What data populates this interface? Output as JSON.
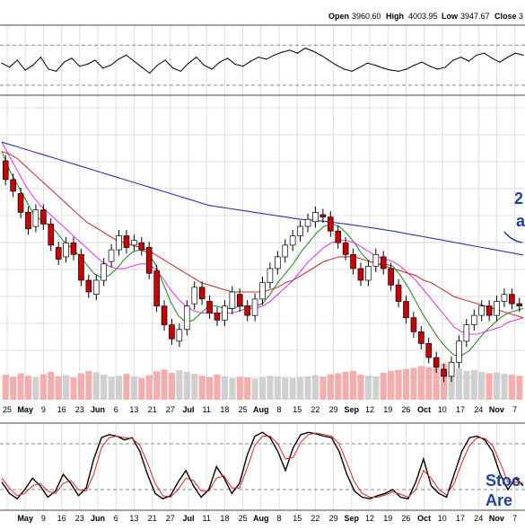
{
  "header": {
    "open_label": "Open",
    "open_value": "3960.60",
    "high_label": "High",
    "high_value": "4003.95",
    "low_label": "Low",
    "low_value": "3947.67",
    "close_label": "Close",
    "close_value": "3"
  },
  "annotations": {
    "ma_note_line1": "2",
    "ma_note_line2": "a",
    "bottom_note_line1": "Stoc",
    "bottom_note_line2": "Are "
  },
  "colors": {
    "up_candle": "#ffffff",
    "down_candle": "#cc0000",
    "ma_fast": "#2e8b2e",
    "ma_mid": "#e040e0",
    "ma_slow_red": "#cc3333",
    "ma_long_blue": "#2a35b0",
    "stoch_k": "#000000",
    "stoch_d": "#dd2222",
    "grid": "#dddddd",
    "annotation": "#1f3fa8"
  },
  "chart_data": [
    {
      "panel": "rsi-indicator",
      "type": "line",
      "values": [
        52,
        48,
        55,
        45,
        50,
        58,
        46,
        44,
        53,
        57,
        49,
        51,
        55,
        47,
        50,
        56,
        60,
        54,
        48,
        42,
        50,
        55,
        47,
        44,
        52,
        58,
        50,
        46,
        53,
        57,
        51,
        49,
        54,
        58,
        56,
        60,
        63,
        65,
        62,
        67,
        64,
        60,
        55,
        50,
        46,
        44,
        48,
        52,
        50,
        47,
        45,
        44,
        46,
        50,
        53,
        49,
        46,
        48,
        55,
        58,
        54,
        60,
        62,
        57,
        53,
        58,
        62,
        60
      ],
      "ylim": [
        20,
        90
      ],
      "reference_levels": [
        70,
        30
      ]
    },
    {
      "panel": "price",
      "type": "candlestick",
      "x_tick_labels": [
        "25",
        "May",
        "9",
        "16",
        "23",
        "Jun",
        "6",
        "13",
        "21",
        "27",
        "Jul",
        "11",
        "18",
        "25",
        "Aug",
        "8",
        "15",
        "22",
        "29",
        "Sep",
        "12",
        "19",
        "26",
        "Oct",
        "10",
        "17",
        "24",
        "Nov",
        "7"
      ],
      "ylim": [
        3500,
        4800
      ],
      "candles": [
        {
          "o": 4520,
          "c": 4440
        },
        {
          "o": 4440,
          "c": 4390
        },
        {
          "o": 4380,
          "c": 4300
        },
        {
          "o": 4300,
          "c": 4230
        },
        {
          "o": 4240,
          "c": 4310
        },
        {
          "o": 4310,
          "c": 4250
        },
        {
          "o": 4250,
          "c": 4160
        },
        {
          "o": 4150,
          "c": 4100
        },
        {
          "o": 4110,
          "c": 4170
        },
        {
          "o": 4170,
          "c": 4120
        },
        {
          "o": 4120,
          "c": 4010
        },
        {
          "o": 4010,
          "c": 3960
        },
        {
          "o": 3950,
          "c": 4010
        },
        {
          "o": 4010,
          "c": 4080
        },
        {
          "o": 4090,
          "c": 4140
        },
        {
          "o": 4140,
          "c": 4200
        },
        {
          "o": 4200,
          "c": 4150
        },
        {
          "o": 4160,
          "c": 4180
        },
        {
          "o": 4170,
          "c": 4140
        },
        {
          "o": 4150,
          "c": 4040
        },
        {
          "o": 4050,
          "c": 3900
        },
        {
          "o": 3900,
          "c": 3820
        },
        {
          "o": 3820,
          "c": 3760
        },
        {
          "o": 3750,
          "c": 3800
        },
        {
          "o": 3800,
          "c": 3900
        },
        {
          "o": 3910,
          "c": 3980
        },
        {
          "o": 3980,
          "c": 3930
        },
        {
          "o": 3920,
          "c": 3870
        },
        {
          "o": 3870,
          "c": 3840
        },
        {
          "o": 3840,
          "c": 3900
        },
        {
          "o": 3890,
          "c": 3960
        },
        {
          "o": 3950,
          "c": 3900
        },
        {
          "o": 3900,
          "c": 3860
        },
        {
          "o": 3860,
          "c": 3930
        },
        {
          "o": 3930,
          "c": 4000
        },
        {
          "o": 4000,
          "c": 4060
        },
        {
          "o": 4060,
          "c": 4110
        },
        {
          "o": 4110,
          "c": 4160
        },
        {
          "o": 4160,
          "c": 4200
        },
        {
          "o": 4200,
          "c": 4240
        },
        {
          "o": 4240,
          "c": 4270
        },
        {
          "o": 4260,
          "c": 4300
        },
        {
          "o": 4290,
          "c": 4280
        },
        {
          "o": 4280,
          "c": 4220
        },
        {
          "o": 4220,
          "c": 4170
        },
        {
          "o": 4170,
          "c": 4120
        },
        {
          "o": 4120,
          "c": 4060
        },
        {
          "o": 4060,
          "c": 4010
        },
        {
          "o": 4010,
          "c": 4070
        },
        {
          "o": 4070,
          "c": 4120
        },
        {
          "o": 4110,
          "c": 4060
        },
        {
          "o": 4060,
          "c": 3990
        },
        {
          "o": 3990,
          "c": 3920
        },
        {
          "o": 3920,
          "c": 3850
        },
        {
          "o": 3850,
          "c": 3790
        },
        {
          "o": 3790,
          "c": 3740
        },
        {
          "o": 3740,
          "c": 3680
        },
        {
          "o": 3680,
          "c": 3640
        },
        {
          "o": 3630,
          "c": 3600
        },
        {
          "o": 3600,
          "c": 3660
        },
        {
          "o": 3660,
          "c": 3750
        },
        {
          "o": 3750,
          "c": 3820
        },
        {
          "o": 3820,
          "c": 3860
        },
        {
          "o": 3860,
          "c": 3900
        },
        {
          "o": 3900,
          "c": 3860
        },
        {
          "o": 3860,
          "c": 3920
        },
        {
          "o": 3920,
          "c": 3950
        },
        {
          "o": 3950,
          "c": 3910
        },
        {
          "o": 3910,
          "c": 3900
        }
      ],
      "series": [
        {
          "style": "ma_fast",
          "values": [
            4560,
            4480,
            4420,
            4360,
            4300,
            4270,
            4250,
            4220,
            4180,
            4150,
            4120,
            4080,
            4040,
            4020,
            4030,
            4060,
            4100,
            4130,
            4140,
            4130,
            4080,
            4000,
            3920,
            3860,
            3830,
            3840,
            3870,
            3900,
            3900,
            3890,
            3890,
            3900,
            3900,
            3900,
            3910,
            3950,
            4000,
            4040,
            4080,
            4130,
            4170,
            4210,
            4240,
            4250,
            4240,
            4210,
            4170,
            4120,
            4090,
            4080,
            4080,
            4070,
            4030,
            3980,
            3920,
            3860,
            3810,
            3760,
            3720,
            3690,
            3690,
            3710,
            3750,
            3790,
            3820,
            3850,
            3870,
            3880,
            3890
          ]
        },
        {
          "style": "ma_mid",
          "values": [
            4600,
            4540,
            4480,
            4420,
            4370,
            4330,
            4300,
            4270,
            4240,
            4210,
            4180,
            4150,
            4120,
            4090,
            4070,
            4060,
            4060,
            4070,
            4080,
            4080,
            4060,
            4020,
            3970,
            3930,
            3900,
            3880,
            3870,
            3870,
            3870,
            3870,
            3870,
            3880,
            3890,
            3890,
            3900,
            3920,
            3950,
            3980,
            4010,
            4050,
            4090,
            4120,
            4150,
            4170,
            4180,
            4180,
            4170,
            4150,
            4130,
            4110,
            4100,
            4090,
            4070,
            4040,
            4010,
            3970,
            3930,
            3890,
            3850,
            3810,
            3790,
            3780,
            3780,
            3790,
            3800,
            3810,
            3830,
            3840,
            3850
          ]
        },
        {
          "style": "ma_slow_red",
          "values": [
            4560,
            4550,
            4530,
            4500,
            4470,
            4440,
            4410,
            4380,
            4350,
            4320,
            4290,
            4260,
            4240,
            4220,
            4200,
            4180,
            4170,
            4160,
            4150,
            4140,
            4120,
            4100,
            4080,
            4060,
            4040,
            4020,
            4000,
            3990,
            3980,
            3970,
            3960,
            3960,
            3960,
            3960,
            3960,
            3970,
            3980,
            4000,
            4010,
            4030,
            4050,
            4070,
            4090,
            4100,
            4110,
            4110,
            4110,
            4100,
            4090,
            4080,
            4070,
            4060,
            4050,
            4040,
            4030,
            4010,
            4000,
            3980,
            3960,
            3940,
            3930,
            3920,
            3910,
            3900,
            3890,
            3880,
            3870,
            3860,
            3850
          ]
        },
        {
          "style": "ma_long_blue",
          "values": [
            4600,
            4590,
            4580,
            4570,
            4560,
            4550,
            4540,
            4530,
            4520,
            4510,
            4500,
            4490,
            4480,
            4470,
            4460,
            4450,
            4440,
            4430,
            4420,
            4410,
            4400,
            4390,
            4380,
            4370,
            4360,
            4350,
            4340,
            4330,
            4325,
            4320,
            4315,
            4310,
            4305,
            4300,
            4295,
            4290,
            4285,
            4280,
            4275,
            4270,
            4268,
            4265,
            4262,
            4258,
            4254,
            4250,
            4245,
            4240,
            4235,
            4230,
            4225,
            4220,
            4214,
            4208,
            4202,
            4196,
            4190,
            4184,
            4178,
            4172,
            4166,
            4160,
            4154,
            4148,
            4142,
            4136,
            4130,
            4124,
            4118
          ]
        }
      ]
    },
    {
      "panel": "volume",
      "type": "bar",
      "values": [
        52,
        48,
        55,
        50,
        47,
        53,
        58,
        49,
        51,
        46,
        55,
        60,
        57,
        52,
        48,
        50,
        54,
        49,
        45,
        51,
        59,
        63,
        56,
        61,
        58,
        54,
        50,
        47,
        52,
        49,
        45,
        48,
        46,
        44,
        47,
        50,
        48,
        46,
        45,
        47,
        49,
        51,
        48,
        53,
        55,
        58,
        60,
        52,
        50,
        49,
        56,
        60,
        62,
        64,
        66,
        70,
        68,
        72,
        75,
        70,
        65,
        60,
        62,
        58,
        55,
        57,
        54,
        52,
        50
      ],
      "ylim": [
        0,
        140
      ]
    },
    {
      "panel": "stochastic",
      "type": "line",
      "x_tick_labels": [
        "May",
        "9",
        "16",
        "23",
        "Jun",
        "6",
        "13",
        "21",
        "27",
        "Jul",
        "11",
        "18",
        "25",
        "Aug",
        "8",
        "15",
        "22",
        "29",
        "Sep",
        "12",
        "19",
        "26",
        "Oct",
        "10",
        "17",
        "24",
        "Nov",
        "7"
      ],
      "ylim": [
        0,
        100
      ],
      "reference_levels": [
        80,
        20
      ],
      "series": [
        {
          "style": "stoch_k",
          "values": [
            30,
            15,
            8,
            20,
            35,
            25,
            10,
            18,
            40,
            28,
            12,
            22,
            60,
            88,
            92,
            90,
            85,
            88,
            70,
            40,
            15,
            8,
            12,
            30,
            45,
            25,
            10,
            20,
            50,
            35,
            15,
            28,
            65,
            90,
            95,
            88,
            70,
            45,
            75,
            92,
            95,
            93,
            90,
            88,
            70,
            40,
            18,
            10,
            8,
            12,
            15,
            20,
            10,
            8,
            30,
            60,
            25,
            15,
            10,
            40,
            70,
            88,
            90,
            85,
            70,
            40,
            20,
            35,
            25
          ]
        },
        {
          "style": "stoch_d",
          "values": [
            35,
            22,
            12,
            15,
            25,
            28,
            18,
            15,
            28,
            32,
            20,
            18,
            40,
            75,
            88,
            90,
            88,
            87,
            78,
            55,
            28,
            12,
            10,
            20,
            35,
            32,
            18,
            18,
            35,
            38,
            22,
            22,
            48,
            78,
            90,
            90,
            80,
            60,
            62,
            82,
            92,
            94,
            92,
            90,
            80,
            55,
            30,
            15,
            10,
            10,
            13,
            17,
            14,
            10,
            20,
            45,
            35,
            20,
            13,
            28,
            55,
            78,
            88,
            87,
            78,
            55,
            30,
            30,
            28
          ]
        }
      ]
    }
  ]
}
